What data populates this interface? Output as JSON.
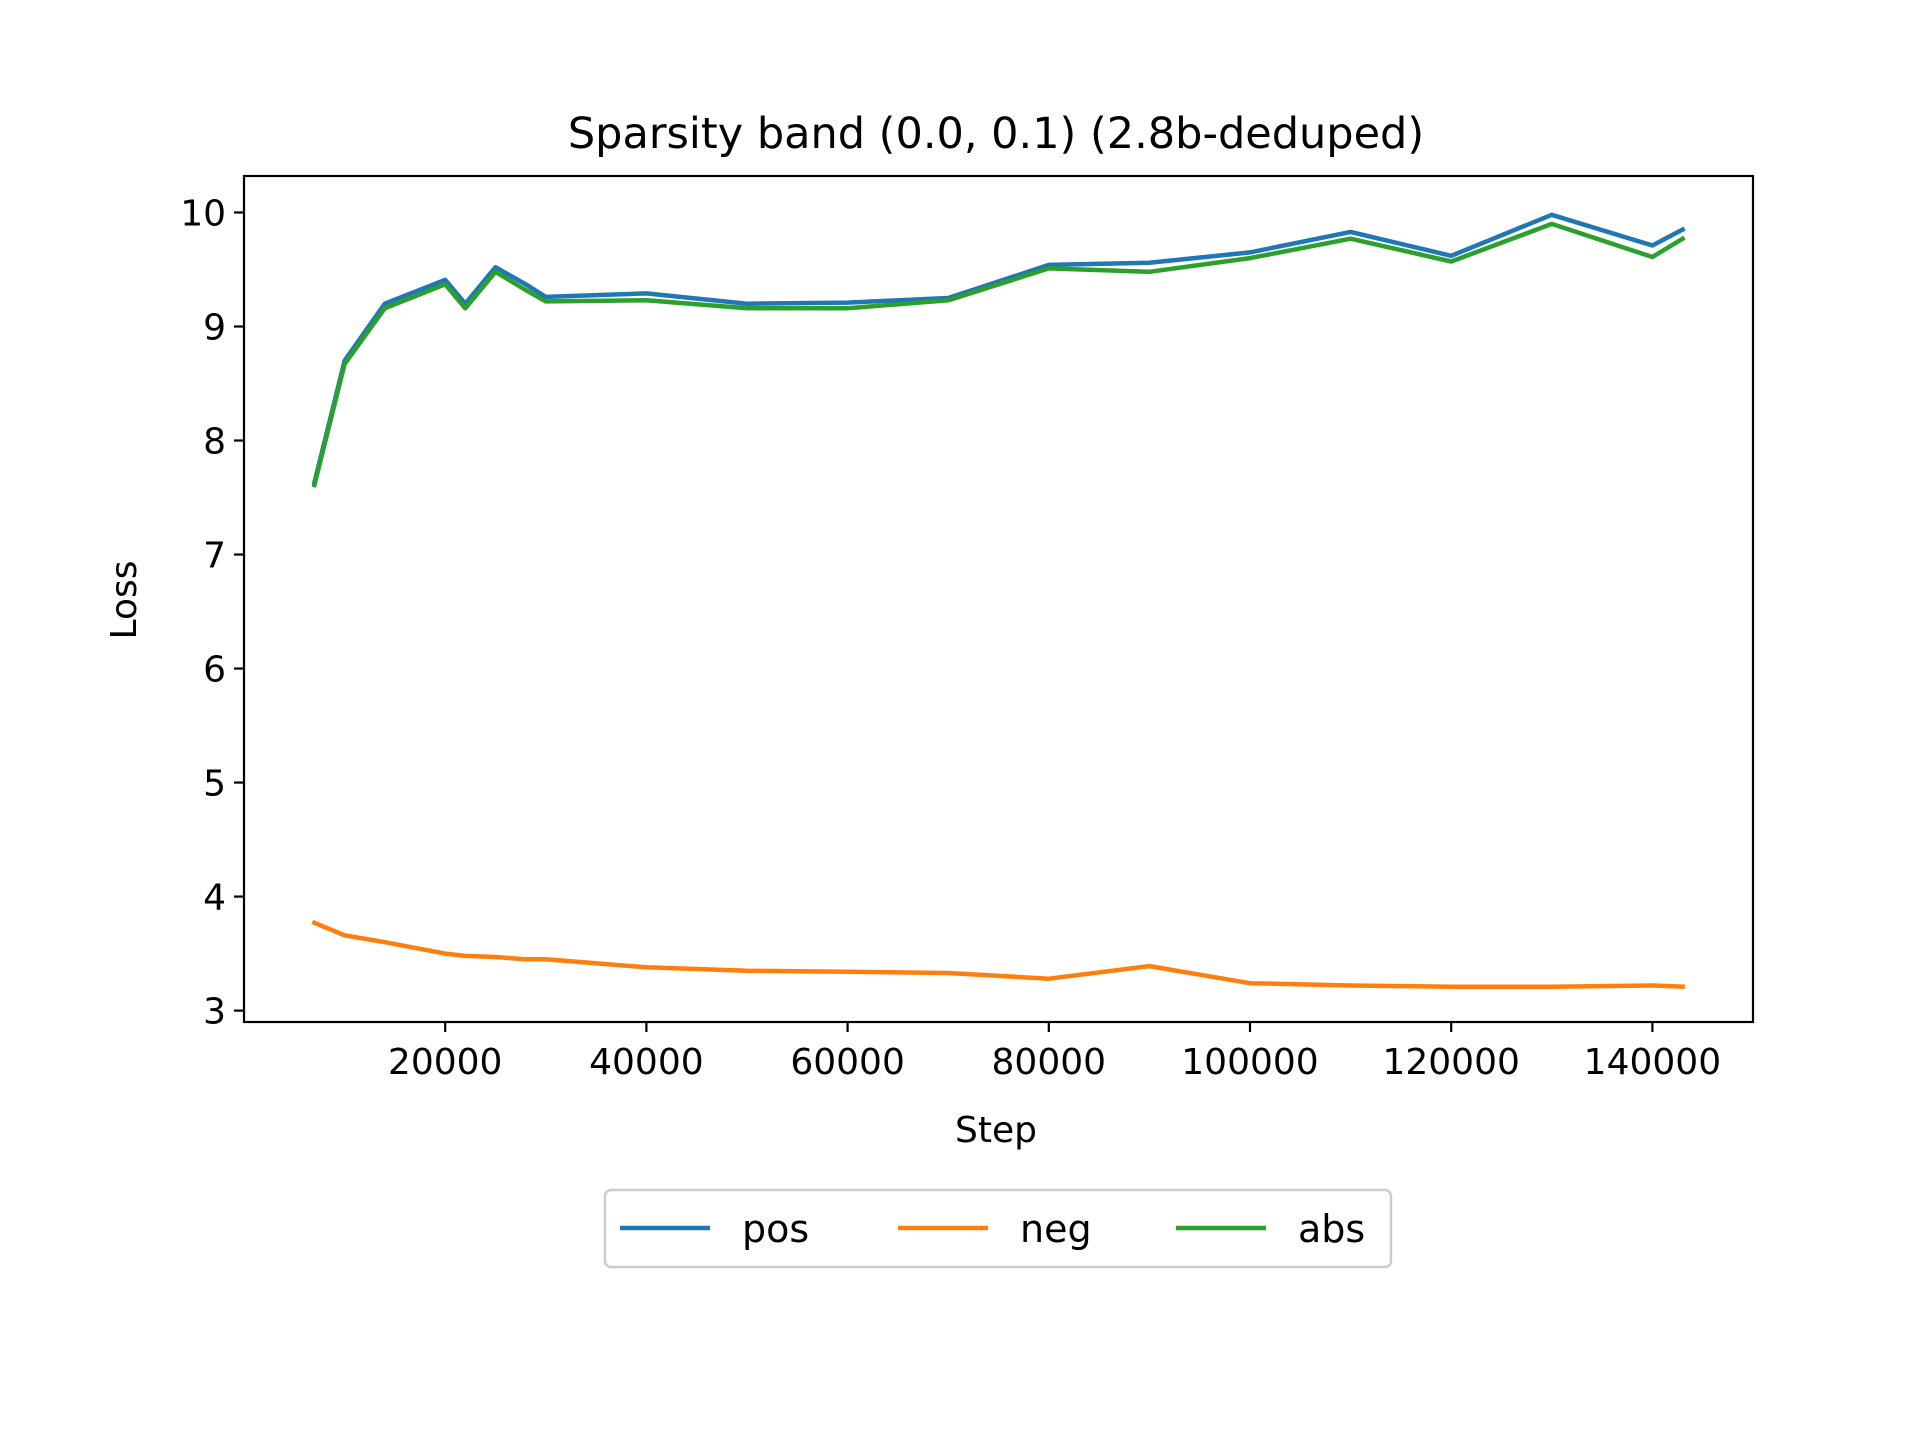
{
  "chart_data": {
    "type": "line",
    "title": "Sparsity band (0.0, 0.1) (2.8b-deduped)",
    "xlabel": "Step",
    "ylabel": "Loss",
    "xlim": [
      0,
      150000
    ],
    "ylim": [
      2.9,
      10.32
    ],
    "xticks": [
      20000,
      40000,
      60000,
      80000,
      100000,
      120000,
      140000
    ],
    "yticks": [
      3,
      4,
      5,
      6,
      7,
      8,
      9,
      10
    ],
    "grid": false,
    "legend_placement": "below",
    "x": [
      7000,
      10000,
      14000,
      20000,
      22000,
      25000,
      28000,
      30000,
      40000,
      50000,
      60000,
      70000,
      80000,
      90000,
      100000,
      110000,
      120000,
      130000,
      140000,
      143000
    ],
    "series": [
      {
        "name": "pos",
        "color": "#1f77b4",
        "values": [
          7.63,
          8.7,
          9.2,
          9.41,
          9.2,
          9.52,
          9.37,
          9.26,
          9.29,
          9.2,
          9.21,
          9.25,
          9.54,
          9.56,
          9.65,
          9.83,
          9.62,
          9.98,
          9.71,
          9.85
        ]
      },
      {
        "name": "neg",
        "color": "#ff7f0e",
        "values": [
          3.77,
          3.66,
          3.6,
          3.5,
          3.48,
          3.47,
          3.45,
          3.45,
          3.38,
          3.35,
          3.34,
          3.33,
          3.28,
          3.39,
          3.24,
          3.22,
          3.21,
          3.21,
          3.22,
          3.21
        ]
      },
      {
        "name": "abs",
        "color": "#2ca02c",
        "values": [
          7.61,
          8.67,
          9.16,
          9.37,
          9.16,
          9.48,
          9.32,
          9.22,
          9.23,
          9.16,
          9.16,
          9.23,
          9.51,
          9.48,
          9.6,
          9.77,
          9.57,
          9.9,
          9.61,
          9.77
        ]
      }
    ]
  }
}
